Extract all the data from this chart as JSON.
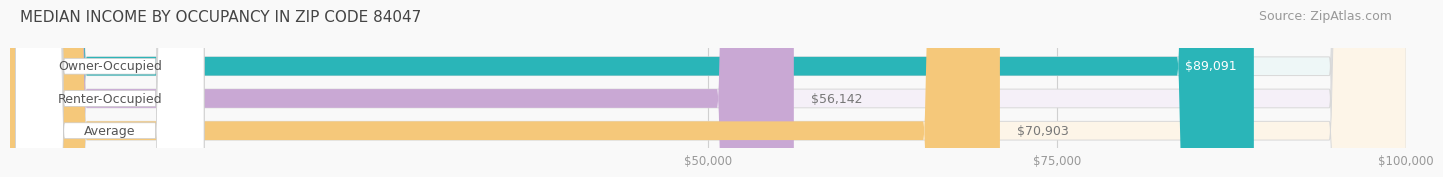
{
  "title": "MEDIAN INCOME BY OCCUPANCY IN ZIP CODE 84047",
  "source": "Source: ZipAtlas.com",
  "categories": [
    "Owner-Occupied",
    "Renter-Occupied",
    "Average"
  ],
  "values": [
    89091,
    56142,
    70903
  ],
  "labels": [
    "$89,091",
    "$56,142",
    "$70,903"
  ],
  "label_colors": [
    "#ffffff",
    "#777777",
    "#777777"
  ],
  "bar_colors": [
    "#2ab5b8",
    "#c9a8d4",
    "#f5c87a"
  ],
  "bg_colors": [
    "#eef7f7",
    "#f5f0f8",
    "#fdf5e8"
  ],
  "xmin": 0,
  "xmax": 100000,
  "xticks": [
    50000,
    75000,
    100000
  ],
  "xtick_labels": [
    "$50,000",
    "$75,000",
    "$100,000"
  ],
  "title_fontsize": 11,
  "source_fontsize": 9,
  "label_fontsize": 9,
  "cat_fontsize": 9,
  "background_color": "#f9f9f9"
}
